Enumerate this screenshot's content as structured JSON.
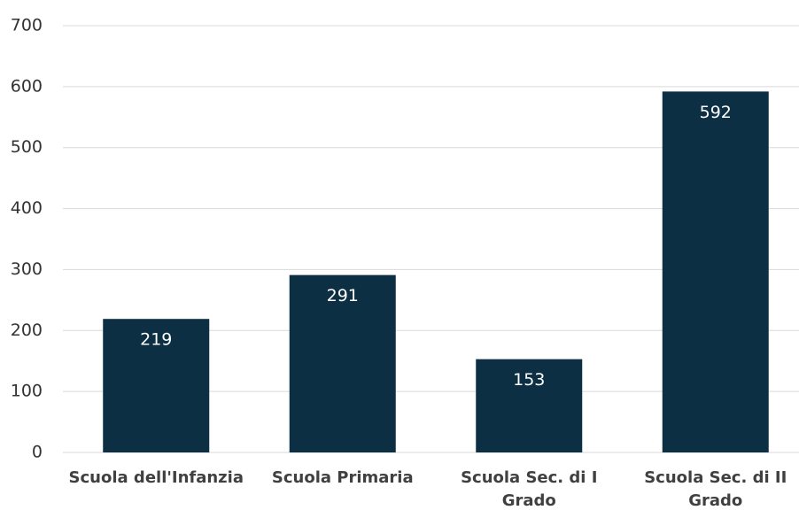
{
  "chart_data": {
    "type": "bar",
    "categories": [
      "Scuola dell'Infanzia",
      "Scuola Primaria",
      "Scuola Sec. di I Grado",
      "Scuola Sec. di II Grado"
    ],
    "values": [
      219,
      291,
      153,
      592
    ],
    "color": "#0c2f43",
    "ylim": [
      0,
      700
    ],
    "yticks": [
      0,
      100,
      200,
      300,
      400,
      500,
      600,
      700
    ],
    "grid": true
  }
}
